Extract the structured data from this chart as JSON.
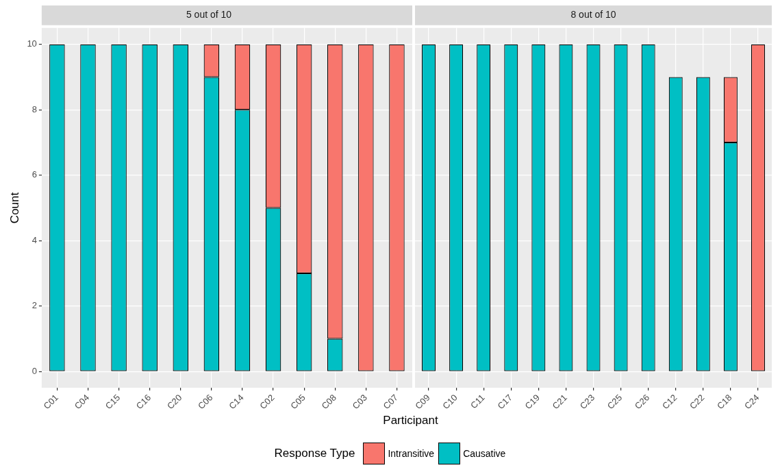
{
  "chart_data": [
    {
      "type": "bar",
      "title": "5 out of 10",
      "xlabel": "Participant",
      "ylabel": "Count",
      "legend_title": "Response Type",
      "legend": "bottom",
      "stacked": true,
      "grid": true,
      "ylim": [
        -0.5,
        10.5
      ],
      "yticks": [
        0,
        2,
        4,
        6,
        8,
        10
      ],
      "categories": [
        "C01",
        "C04",
        "C15",
        "C16",
        "C20",
        "C06",
        "C14",
        "C02",
        "C05",
        "C08",
        "C03",
        "C07"
      ],
      "series": [
        {
          "name": "Causative",
          "color": "#00bfc4",
          "values": [
            10,
            10,
            10,
            10,
            10,
            9,
            8,
            5,
            3,
            1,
            0,
            0
          ]
        },
        {
          "name": "Intransitive",
          "color": "#f8766d",
          "values": [
            0,
            0,
            0,
            0,
            0,
            1,
            2,
            5,
            7,
            9,
            10,
            10
          ]
        }
      ]
    },
    {
      "type": "bar",
      "title": "8 out of 10",
      "stacked": true,
      "grid": true,
      "ylim": [
        -0.5,
        10.5
      ],
      "yticks": [
        0,
        2,
        4,
        6,
        8,
        10
      ],
      "tick_labels": "x",
      "categories": [
        "C09",
        "C10",
        "C11",
        "C17",
        "C19",
        "C21",
        "C23",
        "C25",
        "C26",
        "C12",
        "C22",
        "C18",
        "C24"
      ],
      "series": [
        {
          "color": "#00bfc4",
          "values": [
            10,
            10,
            10,
            10,
            10,
            10,
            10,
            10,
            10,
            9,
            9,
            7,
            0
          ]
        },
        {
          "color": "#f8766d",
          "values": [
            0,
            0,
            0,
            0,
            0,
            0,
            0,
            0,
            0,
            0,
            0,
            2,
            10
          ]
        }
      ]
    }
  ]
}
